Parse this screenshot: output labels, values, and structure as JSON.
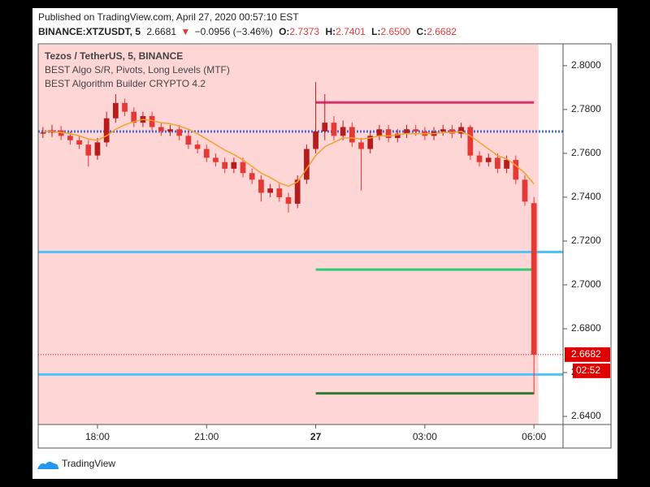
{
  "chart_data": {
    "type": "candlestick",
    "title": "Published on TradingView.com, April 27, 2020 00:57:10 EST",
    "symbol": "BINANCE:XTZUSDT, 5",
    "last": "2.6681",
    "change": "−0.0956 (−3.46%)",
    "ohlc_labels": [
      {
        "label": "O:",
        "value": "2.7373"
      },
      {
        "label": "H:",
        "value": "2.7401"
      },
      {
        "label": "L:",
        "value": "2.6500"
      },
      {
        "label": "C:",
        "value": "2.6682"
      }
    ],
    "legend": [
      "Tezos / TetherUS, 5, BINANCE",
      "BEST Algo S/R, Pivots, Long Levels (MTF)",
      "BEST Algorithm Builder CRYPTO 4.2"
    ],
    "brand": "TradingView",
    "background": "#ffd6d6",
    "up_color": "#b71c1c",
    "down_color": "#e53935",
    "x": [
      16.5,
      16.75,
      17,
      17.25,
      17.5,
      17.75,
      18,
      18.25,
      18.5,
      18.75,
      19,
      19.25,
      19.5,
      19.75,
      20,
      20.25,
      20.5,
      20.75,
      21,
      21.25,
      21.5,
      21.75,
      22,
      22.25,
      22.5,
      22.75,
      23,
      23.25,
      23.5,
      23.75,
      24,
      24.25,
      24.5,
      24.75,
      25,
      25.25,
      25.5,
      25.75,
      26,
      26.25,
      26.5,
      26.75,
      27,
      27.25,
      27.5,
      27.75,
      28,
      28.25,
      28.5,
      28.75,
      29,
      29.25,
      29.5,
      29.75,
      30
    ],
    "open": [
      2.769,
      2.7695,
      2.7705,
      2.768,
      2.766,
      2.764,
      2.759,
      2.765,
      2.776,
      2.783,
      2.779,
      2.774,
      2.777,
      2.772,
      2.77,
      2.771,
      2.768,
      2.764,
      2.762,
      2.758,
      2.756,
      2.753,
      2.756,
      2.751,
      2.748,
      2.742,
      2.744,
      2.74,
      2.737,
      2.748,
      2.762,
      2.77,
      2.774,
      2.768,
      2.772,
      2.765,
      2.762,
      2.768,
      2.771,
      2.767,
      2.769,
      2.771,
      2.77,
      2.768,
      2.77,
      2.771,
      2.769,
      2.772,
      2.759,
      2.756,
      2.758,
      2.753,
      2.757,
      2.748,
      2.7373
    ],
    "high": [
      2.772,
      2.773,
      2.7725,
      2.77,
      2.768,
      2.766,
      2.767,
      2.779,
      2.787,
      2.785,
      2.781,
      2.779,
      2.779,
      2.774,
      2.773,
      2.773,
      2.77,
      2.766,
      2.764,
      2.76,
      2.758,
      2.758,
      2.758,
      2.753,
      2.75,
      2.746,
      2.746,
      2.742,
      2.75,
      2.764,
      2.7925,
      2.787,
      2.777,
      2.775,
      2.774,
      2.767,
      2.77,
      2.773,
      2.773,
      2.771,
      2.773,
      2.773,
      2.772,
      2.772,
      2.773,
      2.773,
      2.774,
      2.773,
      2.761,
      2.76,
      2.76,
      2.759,
      2.759,
      2.75,
      2.7401
    ],
    "low": [
      2.767,
      2.7675,
      2.766,
      2.764,
      2.762,
      2.754,
      2.757,
      2.763,
      2.774,
      2.777,
      2.772,
      2.772,
      2.77,
      2.768,
      2.768,
      2.766,
      2.762,
      2.76,
      2.756,
      2.754,
      2.751,
      2.751,
      2.749,
      2.746,
      2.738,
      2.74,
      2.738,
      2.733,
      2.735,
      2.746,
      2.76,
      2.766,
      2.766,
      2.766,
      2.763,
      2.743,
      2.76,
      2.766,
      2.765,
      2.765,
      2.767,
      2.768,
      2.766,
      2.766,
      2.768,
      2.767,
      2.767,
      2.757,
      2.754,
      2.754,
      2.751,
      2.751,
      2.746,
      2.736,
      2.65
    ],
    "close": [
      2.7695,
      2.7705,
      2.768,
      2.766,
      2.764,
      2.759,
      2.765,
      2.776,
      2.783,
      2.779,
      2.774,
      2.777,
      2.772,
      2.77,
      2.771,
      2.768,
      2.764,
      2.762,
      2.758,
      2.756,
      2.753,
      2.756,
      2.751,
      2.748,
      2.742,
      2.744,
      2.74,
      2.737,
      2.748,
      2.762,
      2.77,
      2.774,
      2.768,
      2.772,
      2.765,
      2.762,
      2.768,
      2.771,
      2.767,
      2.769,
      2.771,
      2.77,
      2.768,
      2.77,
      2.771,
      2.769,
      2.772,
      2.759,
      2.756,
      2.758,
      2.753,
      2.757,
      2.748,
      2.738,
      2.6682
    ],
    "ma": {
      "color": "#f5a02c",
      "values": [
        2.77,
        2.77,
        2.7695,
        2.769,
        2.768,
        2.7665,
        2.766,
        2.768,
        2.771,
        2.773,
        2.7745,
        2.7755,
        2.775,
        2.774,
        2.7735,
        2.7725,
        2.771,
        2.769,
        2.7665,
        2.764,
        2.7615,
        2.7595,
        2.757,
        2.754,
        2.751,
        2.749,
        2.7465,
        2.745,
        2.747,
        2.753,
        2.759,
        2.763,
        2.765,
        2.767,
        2.767,
        2.7665,
        2.767,
        2.768,
        2.768,
        2.7685,
        2.769,
        2.769,
        2.769,
        2.769,
        2.7695,
        2.7695,
        2.77,
        2.768,
        2.765,
        2.762,
        2.759,
        2.7575,
        2.7545,
        2.751,
        2.746
      ]
    },
    "levels": [
      {
        "value": 2.77,
        "color": "#4169e1",
        "dotted": true
      },
      {
        "value": 2.715,
        "color": "#4fc3f7"
      },
      {
        "value": 2.6591,
        "color": "#4fc3f7"
      },
      {
        "value": 2.7832,
        "color": "#d6336c",
        "x": [
          24,
          30
        ]
      },
      {
        "value": 2.707,
        "color": "#2ecc71",
        "x": [
          24,
          30
        ]
      },
      {
        "value": 2.6505,
        "color": "#2e7d32",
        "x": [
          24,
          30
        ]
      }
    ],
    "price_line": {
      "value": 2.6682,
      "color": "#e00000",
      "countdown": "02:52"
    },
    "xlim": [
      16.37,
      30.8
    ],
    "xticks": [
      {
        "value": 18,
        "label": "18:00"
      },
      {
        "value": 21,
        "label": "21:00"
      },
      {
        "value": 24,
        "label": "27"
      },
      {
        "value": 27,
        "label": "03:00"
      },
      {
        "value": 30,
        "label": "06:00"
      }
    ],
    "ylim": [
      2.6363,
      2.8096
    ],
    "yticks": [
      {
        "value": 2.64,
        "label": "2.6400"
      },
      {
        "value": 2.66,
        "label": "2.6600"
      },
      {
        "value": 2.68,
        "label": "2.6800"
      },
      {
        "value": 2.7,
        "label": "2.7000"
      },
      {
        "value": 2.72,
        "label": "2.7200"
      },
      {
        "value": 2.74,
        "label": "2.7400"
      },
      {
        "value": 2.76,
        "label": "2.7600"
      },
      {
        "value": 2.78,
        "label": "2.7800"
      },
      {
        "value": 2.8,
        "label": "2.8000"
      }
    ]
  }
}
